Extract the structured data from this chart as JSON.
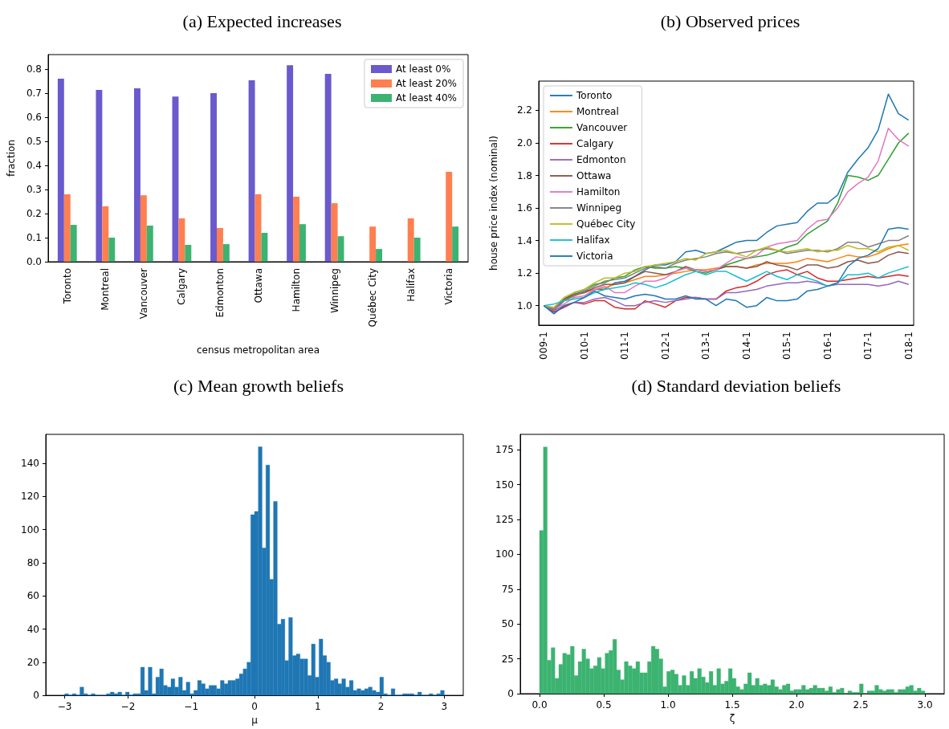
{
  "chart_data": [
    {
      "type": "bar",
      "title": "(a) Expected increases",
      "xlabel": "census metropolitan area",
      "ylabel": "fraction",
      "categories": [
        "Toronto",
        "Montreal",
        "Vancouver",
        "Calgary",
        "Edmonton",
        "Ottawa",
        "Hamilton",
        "Winnipeg",
        "Québec City",
        "Halifax",
        "Victoria"
      ],
      "series": [
        {
          "name": "At least 0%",
          "color": "#6a5acd",
          "values": [
            0.76,
            0.713,
            0.72,
            0.686,
            0.7,
            0.753,
            0.816,
            0.78,
            null,
            null,
            null
          ]
        },
        {
          "name": "At least 20%",
          "color": "#ff7f50",
          "values": [
            0.28,
            0.23,
            0.276,
            0.18,
            0.14,
            0.28,
            0.27,
            0.243,
            0.146,
            0.18,
            0.373
          ]
        },
        {
          "name": "At least 40%",
          "color": "#3cb371",
          "values": [
            0.153,
            0.1,
            0.15,
            0.07,
            0.073,
            0.12,
            0.156,
            0.106,
            0.053,
            0.1,
            0.146
          ]
        }
      ],
      "ylim": [
        0,
        0.86
      ],
      "yticks": [
        {
          "value": 0,
          "label": "0.0"
        },
        0.1,
        0.2,
        0.3,
        0.4,
        0.5,
        0.6,
        0.7,
        0.8
      ],
      "legend": "top right"
    },
    {
      "type": "line",
      "title": "(b) Observed prices",
      "ylabel": "house price index (nominal)",
      "categories": [
        "009-1",
        null,
        null,
        null,
        "010-1",
        null,
        null,
        null,
        "011-1",
        null,
        null,
        null,
        "012-1",
        null,
        null,
        null,
        "013-1",
        null,
        null,
        null,
        "014-1",
        null,
        null,
        null,
        "015-1",
        null,
        null,
        null,
        "016-1",
        null,
        null,
        null,
        "017-1",
        null,
        null,
        null,
        "018-1"
      ],
      "series": [
        {
          "name": "Toronto",
          "color": "#1f77b4",
          "values": [
            1.0,
            0.97,
            1.03,
            1.07,
            1.09,
            1.1,
            1.1,
            1.14,
            1.15,
            1.18,
            1.22,
            1.25,
            1.25,
            1.27,
            1.33,
            1.34,
            1.32,
            1.33,
            1.36,
            1.39,
            1.4,
            1.4,
            1.45,
            1.49,
            1.5,
            1.51,
            1.58,
            1.63,
            1.63,
            1.68,
            1.82,
            1.9,
            1.97,
            2.08,
            2.3,
            2.18,
            2.14
          ]
        },
        {
          "name": "Montreal",
          "color": "#ff7f0e",
          "values": [
            null,
            null,
            1.03,
            1.06,
            1.08,
            1.1,
            1.11,
            1.13,
            1.14,
            1.16,
            1.18,
            1.18,
            1.19,
            1.2,
            1.21,
            1.22,
            1.22,
            1.23,
            1.24,
            1.24,
            1.23,
            1.25,
            1.26,
            1.26,
            1.26,
            1.27,
            1.29,
            1.28,
            1.27,
            1.29,
            1.31,
            1.3,
            1.3,
            1.32,
            1.35,
            1.37,
            1.38
          ]
        },
        {
          "name": "Vancouver",
          "color": "#2ca02c",
          "values": [
            1.0,
            0.97,
            1.04,
            1.08,
            1.1,
            1.13,
            1.14,
            1.17,
            1.18,
            1.22,
            1.24,
            1.23,
            1.23,
            1.24,
            1.23,
            1.21,
            1.2,
            1.22,
            1.25,
            1.27,
            1.29,
            1.3,
            1.31,
            1.33,
            1.36,
            1.38,
            1.44,
            1.48,
            1.52,
            1.63,
            1.8,
            1.79,
            1.77,
            1.8,
            1.9,
            2.0,
            2.06
          ]
        },
        {
          "name": "Calgary",
          "color": "#d62728",
          "values": [
            1.0,
            0.96,
            0.99,
            1.02,
            1.01,
            1.03,
            1.03,
            0.99,
            0.98,
            0.98,
            1.03,
            1.01,
            0.99,
            1.03,
            1.05,
            1.05,
            1.04,
            1.04,
            1.09,
            1.11,
            1.12,
            1.15,
            1.19,
            1.21,
            1.22,
            1.19,
            1.21,
            1.17,
            1.15,
            1.15,
            1.16,
            1.17,
            1.18,
            1.17,
            1.18,
            1.19,
            1.18
          ]
        },
        {
          "name": "Edmonton",
          "color": "#9467bd",
          "values": [
            1.0,
            0.97,
            1.0,
            1.02,
            1.02,
            1.04,
            1.05,
            1.03,
            1.0,
            1.0,
            1.02,
            1.03,
            1.02,
            1.03,
            1.04,
            1.05,
            1.04,
            1.04,
            1.08,
            1.08,
            1.09,
            1.1,
            1.12,
            1.13,
            1.14,
            1.14,
            1.15,
            1.14,
            1.12,
            1.13,
            1.13,
            1.13,
            1.13,
            1.12,
            1.13,
            1.15,
            1.13
          ]
        },
        {
          "name": "Ottawa",
          "color": "#8c564b",
          "values": [
            1.0,
            0.98,
            1.04,
            1.07,
            1.08,
            1.11,
            1.13,
            1.13,
            1.14,
            1.18,
            1.21,
            1.2,
            1.19,
            1.21,
            1.24,
            1.22,
            1.21,
            1.22,
            1.24,
            1.24,
            1.23,
            1.24,
            1.27,
            1.25,
            1.24,
            1.22,
            1.25,
            1.25,
            1.23,
            1.24,
            1.27,
            1.28,
            1.26,
            1.27,
            1.31,
            1.33,
            1.32
          ]
        },
        {
          "name": "Hamilton",
          "color": "#e377c2",
          "values": [
            1.0,
            0.98,
            1.01,
            1.05,
            1.06,
            1.1,
            1.12,
            1.08,
            1.08,
            1.12,
            1.15,
            1.15,
            1.17,
            1.21,
            1.23,
            1.22,
            1.21,
            1.22,
            1.26,
            1.3,
            1.29,
            1.31,
            1.36,
            1.38,
            1.39,
            1.4,
            1.47,
            1.52,
            1.53,
            1.6,
            1.7,
            1.75,
            1.79,
            1.89,
            2.09,
            2.02,
            1.98
          ]
        },
        {
          "name": "Winnipeg",
          "color": "#7f7f7f",
          "values": [
            1.0,
            0.98,
            1.03,
            1.06,
            1.09,
            1.12,
            1.15,
            1.16,
            1.17,
            1.2,
            1.23,
            1.24,
            1.23,
            1.26,
            1.28,
            1.29,
            1.3,
            1.32,
            1.33,
            1.32,
            1.33,
            1.34,
            1.35,
            1.34,
            1.32,
            1.33,
            1.34,
            1.34,
            1.33,
            1.35,
            1.39,
            1.39,
            1.36,
            1.38,
            1.4,
            1.4,
            1.43
          ]
        },
        {
          "name": "Québec City",
          "color": "#bcbd22",
          "values": [
            1.0,
            0.99,
            1.05,
            1.08,
            1.1,
            1.14,
            1.17,
            1.17,
            1.2,
            1.21,
            1.24,
            1.25,
            1.26,
            1.27,
            1.29,
            1.28,
            1.32,
            1.33,
            1.34,
            1.32,
            1.3,
            1.34,
            1.36,
            1.34,
            1.33,
            1.34,
            1.35,
            1.33,
            1.34,
            1.34,
            1.37,
            1.35,
            1.35,
            1.33,
            1.36,
            1.37,
            1.34
          ]
        },
        {
          "name": "Halifax",
          "color": "#17becf",
          "values": [
            1.0,
            1.01,
            1.03,
            1.04,
            1.05,
            1.08,
            1.1,
            1.11,
            1.12,
            1.14,
            1.13,
            1.11,
            1.13,
            1.16,
            1.19,
            1.21,
            1.19,
            1.21,
            1.21,
            1.18,
            1.15,
            1.18,
            1.21,
            1.18,
            1.16,
            1.19,
            1.17,
            1.15,
            1.12,
            1.14,
            1.19,
            1.19,
            1.2,
            1.17,
            1.2,
            1.22,
            1.24
          ]
        },
        {
          "name": "Victoria",
          "color": "#1f77b4",
          "values": [
            1.0,
            0.95,
            1.0,
            1.02,
            1.05,
            1.09,
            1.06,
            1.05,
            1.04,
            1.06,
            1.07,
            1.06,
            1.04,
            1.04,
            1.06,
            1.04,
            1.04,
            1.0,
            1.04,
            1.03,
            0.99,
            1.0,
            1.05,
            1.03,
            1.03,
            1.04,
            1.09,
            1.1,
            1.12,
            1.14,
            1.24,
            1.29,
            1.31,
            1.35,
            1.47,
            1.48,
            1.47
          ]
        }
      ],
      "ylim": [
        0.88,
        2.38
      ],
      "yticks": [
        {
          "value": 1,
          "label": "1.0"
        },
        1.2,
        1.4,
        1.6,
        1.8,
        {
          "value": 2,
          "label": "2.0"
        },
        2.2
      ],
      "legend": "top left"
    },
    {
      "type": "histogram",
      "title": "(c) Mean growth beliefs",
      "xlabel": "μ",
      "color": "#1f77b4",
      "bins": [
        -3,
        -2.94,
        -2.88,
        -2.82,
        -2.76,
        -2.7,
        -2.64,
        -2.58,
        -2.52,
        -2.46,
        -2.4,
        -2.34,
        -2.28,
        -2.22,
        -2.16,
        -2.1,
        -2.04,
        -1.98,
        -1.92,
        -1.86,
        -1.8,
        -1.74,
        -1.68,
        -1.62,
        -1.56,
        -1.5,
        -1.44,
        -1.38,
        -1.32,
        -1.26,
        -1.2,
        -1.14,
        -1.08,
        -1.02,
        -0.96,
        -0.9,
        -0.84,
        -0.78,
        -0.72,
        -0.66,
        -0.6,
        -0.54,
        -0.48,
        -0.42,
        -0.36,
        -0.3,
        -0.24,
        -0.18,
        -0.12,
        -0.06,
        0,
        0.06,
        0.12,
        0.18,
        0.24,
        0.3,
        0.36,
        0.42,
        0.48,
        0.54,
        0.6,
        0.66,
        0.72,
        0.78,
        0.84,
        0.9,
        0.96,
        1.02,
        1.08,
        1.14,
        1.2,
        1.26,
        1.32,
        1.38,
        1.44,
        1.5,
        1.56,
        1.62,
        1.68,
        1.74,
        1.8,
        1.86,
        1.92,
        1.98,
        2.04,
        2.1,
        2.16,
        2.22,
        2.28,
        2.34,
        2.4,
        2.46,
        2.52,
        2.58,
        2.64,
        2.7,
        2.76,
        2.82,
        2.88,
        2.94,
        3
      ],
      "values": [
        1,
        0,
        1,
        0,
        5,
        1,
        0,
        1,
        0,
        0,
        0,
        1,
        2,
        1,
        2,
        0,
        2,
        0,
        1,
        1,
        17,
        3,
        17,
        1,
        11,
        16,
        6,
        5,
        10,
        5,
        11,
        3,
        8,
        1,
        3,
        9,
        7,
        4,
        6,
        6,
        4,
        9,
        7,
        9,
        9,
        10,
        13,
        16,
        20,
        109,
        111,
        150,
        89,
        139,
        70,
        117,
        43,
        46,
        21,
        47,
        24,
        25,
        22,
        22,
        12,
        31,
        11,
        34,
        24,
        20,
        9,
        10,
        7,
        10,
        5,
        9,
        3,
        4,
        3,
        4,
        5,
        3,
        2,
        11,
        1,
        0,
        4,
        0,
        0,
        1,
        1,
        1,
        0,
        2,
        0,
        0,
        1,
        0,
        1,
        3
      ],
      "xlim": [
        -3.3,
        3.3
      ],
      "xticks": [
        {
          "value": -3,
          "label": "−3"
        },
        {
          "value": -2,
          "label": "−2"
        },
        {
          "value": -1,
          "label": "−1"
        },
        0,
        1,
        2,
        3
      ],
      "ylim": [
        0,
        157.5
      ],
      "yticks": [
        0,
        20,
        40,
        60,
        80,
        100,
        120,
        140
      ]
    },
    {
      "type": "histogram",
      "title": "(d) Standard deviation beliefs",
      "xlabel": "ζ",
      "color": "#3cb371",
      "bins": [
        0,
        0.03,
        0.06,
        0.09,
        0.12,
        0.15,
        0.18,
        0.21,
        0.24,
        0.27,
        0.3,
        0.33,
        0.36,
        0.39,
        0.42,
        0.45,
        0.48,
        0.51,
        0.54,
        0.57,
        0.6,
        0.63,
        0.66,
        0.69,
        0.72,
        0.75,
        0.78,
        0.81,
        0.84,
        0.87,
        0.9,
        0.93,
        0.96,
        0.99,
        1.02,
        1.05,
        1.08,
        1.11,
        1.14,
        1.17,
        1.2,
        1.23,
        1.26,
        1.29,
        1.32,
        1.35,
        1.38,
        1.41,
        1.44,
        1.47,
        1.5,
        1.53,
        1.56,
        1.59,
        1.62,
        1.65,
        1.68,
        1.71,
        1.74,
        1.77,
        1.8,
        1.83,
        1.86,
        1.89,
        1.92,
        1.95,
        1.98,
        2.01,
        2.04,
        2.07,
        2.1,
        2.13,
        2.16,
        2.19,
        2.22,
        2.25,
        2.28,
        2.31,
        2.34,
        2.37,
        2.4,
        2.43,
        2.46,
        2.49,
        2.52,
        2.55,
        2.58,
        2.61,
        2.64,
        2.67,
        2.7,
        2.73,
        2.76,
        2.79,
        2.82,
        2.85,
        2.88,
        2.91,
        2.94,
        2.97,
        3
      ],
      "values": [
        117,
        177,
        24,
        33,
        11,
        21,
        29,
        28,
        34,
        13,
        23,
        32,
        25,
        18,
        20,
        26,
        18,
        29,
        31,
        39,
        17,
        10,
        23,
        20,
        18,
        23,
        15,
        15,
        23,
        34,
        32,
        25,
        5,
        16,
        17,
        14,
        6,
        13,
        6,
        16,
        11,
        18,
        12,
        8,
        16,
        6,
        18,
        7,
        9,
        18,
        11,
        5,
        3,
        7,
        15,
        6,
        11,
        6,
        7,
        6,
        10,
        5,
        3,
        6,
        7,
        2,
        3,
        3,
        6,
        3,
        4,
        6,
        4,
        4,
        2,
        5,
        1,
        3,
        4,
        0,
        2,
        1,
        1,
        7,
        0,
        2,
        2,
        6,
        3,
        2,
        3,
        3,
        1,
        3,
        3,
        5,
        6,
        2,
        4,
        2
      ],
      "xlim": [
        -0.15,
        3.15
      ],
      "xticks": [
        {
          "value": 0,
          "label": "0.0"
        },
        0.5,
        {
          "value": 1,
          "label": "1.0"
        },
        1.5,
        {
          "value": 2,
          "label": "2.0"
        },
        2.5,
        {
          "value": 3,
          "label": "3.0"
        }
      ],
      "ylim": [
        0,
        186
      ],
      "yticks": [
        0,
        25,
        50,
        75,
        100,
        125,
        150,
        175
      ]
    }
  ]
}
